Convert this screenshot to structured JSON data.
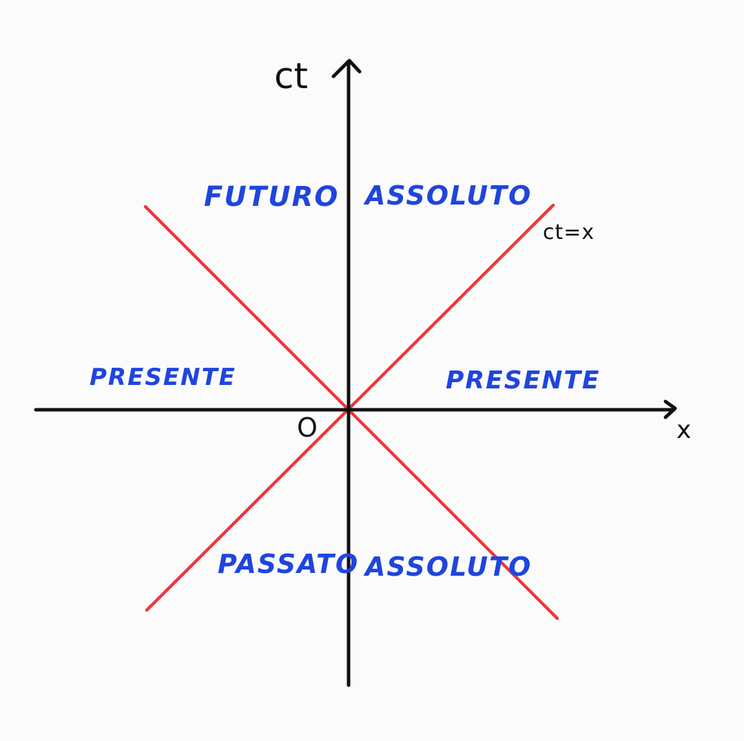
{
  "axes": {
    "vertical_label": "ct",
    "horizontal_label": "x",
    "origin_label": "O"
  },
  "light_cone": {
    "line_label": "ct=x"
  },
  "regions": {
    "future_left": "FUTURO",
    "future_right": "ASSOLUTO",
    "present_left": "PRESENTE",
    "present_right": "PRESENTE",
    "past_left": "PASSATO",
    "past_right": "ASSOLUTO"
  },
  "colors": {
    "axes": "#111111",
    "light_cone": "#e8393d",
    "region_text": "#1f45dd",
    "background": "#fbfbfb"
  }
}
